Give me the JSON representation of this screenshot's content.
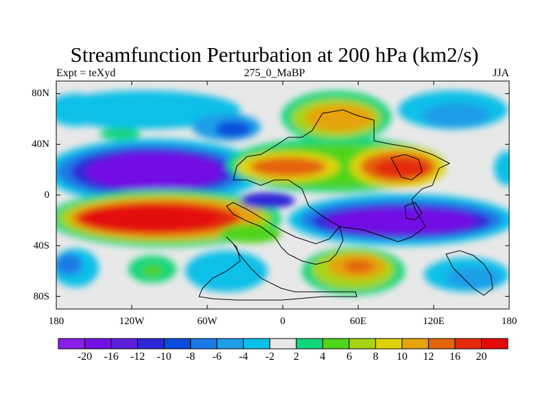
{
  "map": {
    "title": "Streamfunction Perturbation at 200 hPa (km2/s)",
    "left_label": "Expt = teXyd",
    "center_label": "275_0_MaBP",
    "right_label": "JJA",
    "lon_range": [
      -180,
      180
    ],
    "lat_range": [
      -90,
      90
    ],
    "y_ticks": [
      {
        "lat": 80,
        "label": "80N"
      },
      {
        "lat": 40,
        "label": "40N"
      },
      {
        "lat": 0,
        "label": "0"
      },
      {
        "lat": -40,
        "label": "40S"
      },
      {
        "lat": -80,
        "label": "80S"
      }
    ],
    "x_ticks": [
      {
        "lon": -180,
        "label": "180"
      },
      {
        "lon": -120,
        "label": "120W"
      },
      {
        "lon": -60,
        "label": "60W"
      },
      {
        "lon": 0,
        "label": "0"
      },
      {
        "lon": 60,
        "label": "60E"
      },
      {
        "lon": 120,
        "label": "120E"
      },
      {
        "lon": 180,
        "label": "180"
      }
    ]
  },
  "colorbar": {
    "levels": [
      -20,
      -16,
      -12,
      -10,
      -8,
      -6,
      -4,
      -2,
      2,
      4,
      6,
      8,
      10,
      12,
      16,
      20
    ],
    "labels": [
      "-20",
      "-16",
      "-12",
      "-10",
      "-8",
      "-6",
      "-4",
      "-2",
      "2",
      "4",
      "6",
      "8",
      "10",
      "12",
      "16",
      "20"
    ],
    "colors": [
      "#8A1EEA",
      "#7311E5",
      "#5A20D8",
      "#2F26D6",
      "#0A4DDC",
      "#1A7AE6",
      "#1F9EE8",
      "#0AC0E8",
      "#E8E8E8",
      "#13D67B",
      "#50D41C",
      "#A8D414",
      "#E0D20A",
      "#E6A30A",
      "#E4640A",
      "#E32A0A",
      "#E30A0A"
    ]
  }
}
